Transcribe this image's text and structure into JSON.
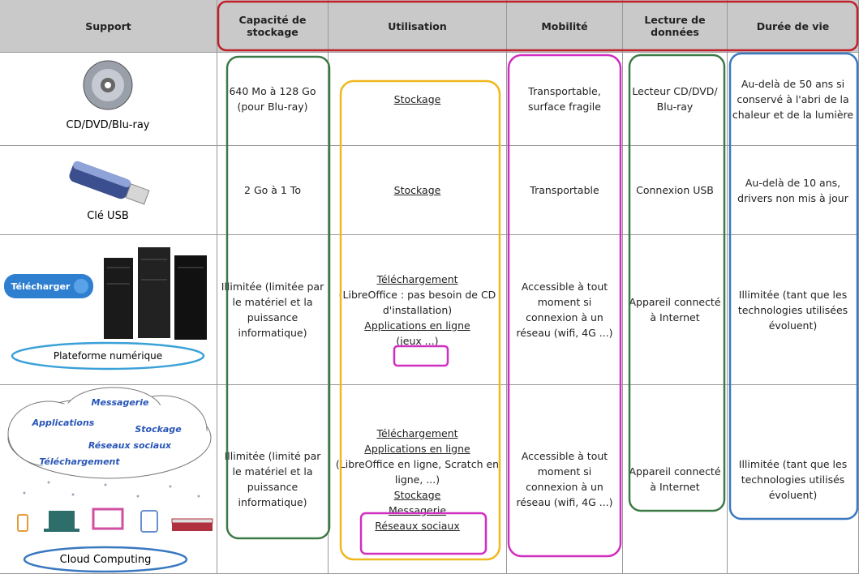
{
  "table": {
    "header": [
      "Support",
      "Capacité de stockage",
      "Utilisation",
      "Mobilité",
      "Lecture de données",
      "Durée de vie"
    ],
    "rows": [
      {
        "support": {
          "label": "CD/DVD/Blu-ray"
        },
        "capacity": "640 Mo à 128 Go (pour Blu-ray)",
        "usage": [
          "Stockage"
        ],
        "mobility": "Transportable, surface fragile",
        "reading": "Lecteur CD/DVD/ Blu-ray",
        "lifetime": "Au-delà de 50 ans si conservé à l'abri de la chaleur et de la lumière"
      },
      {
        "support": {
          "label": "Clé USB"
        },
        "capacity": "2 Go à 1 To",
        "usage": [
          "Stockage"
        ],
        "mobility": "Transportable",
        "reading": "Connexion USB",
        "lifetime": "Au-delà de 10 ans, drivers non mis à jour"
      },
      {
        "support": {
          "label": "Plateforme numérique",
          "button": "Télécharger"
        },
        "capacity": "Illimitée (limitée par le matériel et la puissance informatique)",
        "usage": [
          "Téléchargement",
          "(LibreOffice : pas besoin de CD d'installation)",
          "Applications en ligne",
          "(jeux ...)"
        ],
        "mobility": "Accessible à tout moment si connexion à un réseau (wifi, 4G ...)",
        "reading": "Appareil connecté à Internet",
        "lifetime": "Illimitée (tant que les technologies utilisées évoluent)"
      },
      {
        "support": {
          "label": "Cloud Computing",
          "cloud_words": [
            "Messagerie",
            "Applications",
            "Stockage",
            "Réseaux sociaux",
            "Téléchargement"
          ]
        },
        "capacity": "Illimitée (limité par le matériel et la puissance informatique)",
        "usage": [
          "Téléchargement",
          "Applications en ligne",
          "(LibreOffice en ligne, Scratch en ligne, ...)",
          "Stockage",
          "Messagerie",
          "Réseaux sociaux"
        ],
        "mobility": "Accessible à tout moment si connexion à un réseau (wifi, 4G ...)",
        "reading": "Appareil connecté à Internet",
        "lifetime": "Illimitée (tant que les technologies utilisés évoluent)"
      }
    ]
  }
}
